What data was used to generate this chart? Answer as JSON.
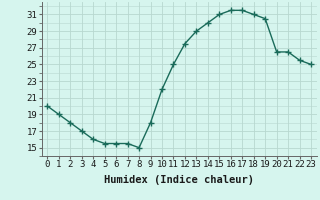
{
  "x": [
    0,
    1,
    2,
    3,
    4,
    5,
    6,
    7,
    8,
    9,
    10,
    11,
    12,
    13,
    14,
    15,
    16,
    17,
    18,
    19,
    20,
    21,
    22,
    23
  ],
  "y": [
    20,
    19,
    18,
    17,
    16,
    15.5,
    15.5,
    15.5,
    15,
    18,
    22,
    25,
    27.5,
    29,
    30,
    31,
    31.5,
    31.5,
    31,
    30.5,
    26.5,
    26.5,
    25.5,
    25
  ],
  "line_color": "#1a6b5a",
  "marker_color": "#1a6b5a",
  "background_color": "#d6f5ee",
  "grid_color": "#b8d8d0",
  "xlabel": "Humidex (Indice chaleur)",
  "xlim": [
    -0.5,
    23.5
  ],
  "ylim": [
    14,
    32.5
  ],
  "yticks": [
    15,
    17,
    19,
    21,
    23,
    25,
    27,
    29,
    31
  ],
  "xticks": [
    0,
    1,
    2,
    3,
    4,
    5,
    6,
    7,
    8,
    9,
    10,
    11,
    12,
    13,
    14,
    15,
    16,
    17,
    18,
    19,
    20,
    21,
    22,
    23
  ],
  "xlabel_fontsize": 7.5,
  "tick_fontsize": 6.5,
  "marker_size": 2.5,
  "line_width": 1.0
}
